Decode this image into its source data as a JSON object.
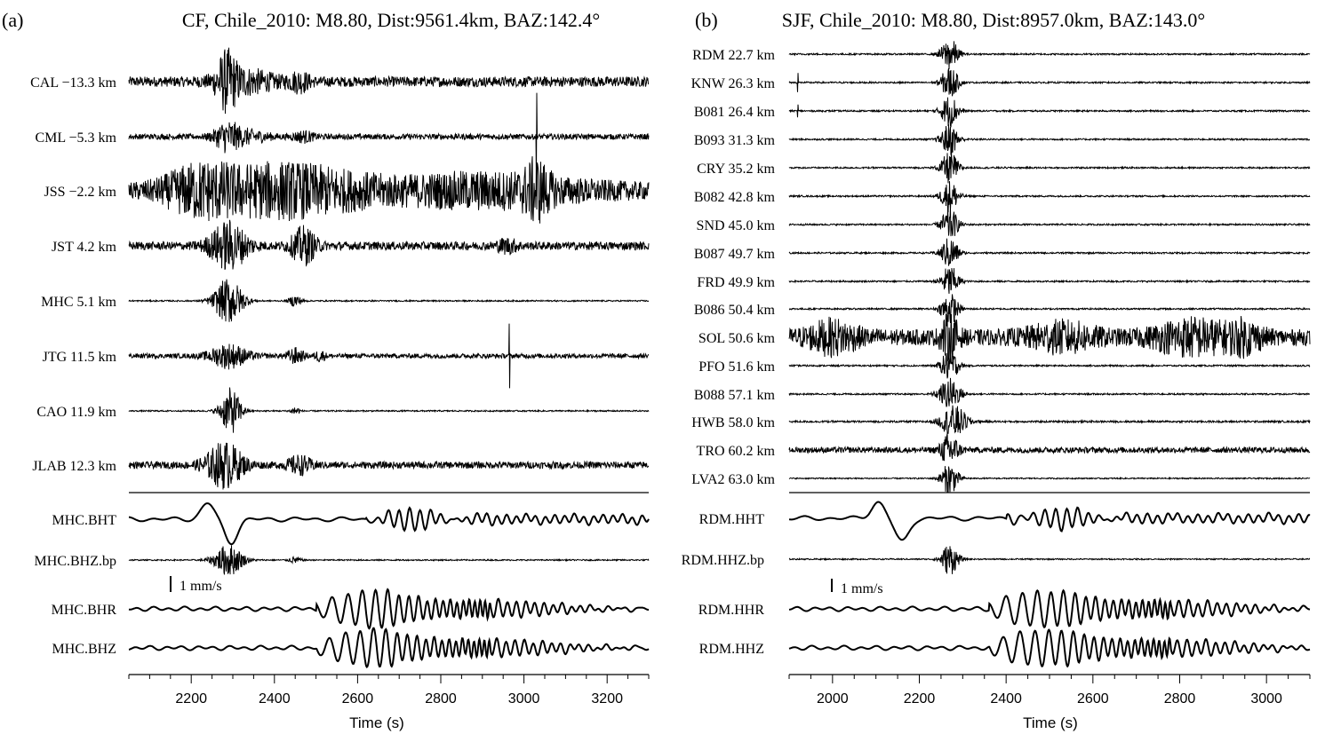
{
  "chart_data": [
    {
      "type": "line",
      "panel_label": "(a)",
      "title": "CF, Chile_2010: M8.80, Dist:9561.4km, BAZ:142.4°",
      "xlabel": "Time (s)",
      "ylabel": "",
      "xlim": [
        2050,
        3300
      ],
      "xticks": [
        2200,
        2400,
        2600,
        2800,
        3000,
        3200
      ],
      "xtick_labels": [
        "2200",
        "2400",
        "2600",
        "2800",
        "3000",
        "3200"
      ],
      "grid": false,
      "scale_bar": "1 mm/s",
      "series": [
        {
          "name": "CAL −13.3 km",
          "noise": 0.22,
          "bursts": [
            [
              2285,
              25,
              1.0
            ],
            [
              2330,
              70,
              0.45
            ],
            [
              2460,
              25,
              0.35
            ]
          ],
          "spikes": []
        },
        {
          "name": "CML −5.3 km",
          "noise": 0.12,
          "bursts": [
            [
              2285,
              30,
              0.55
            ],
            [
              2335,
              50,
              0.25
            ],
            [
              2470,
              25,
              0.2
            ]
          ],
          "spikes": [
            [
              3030,
              1.9
            ]
          ]
        },
        {
          "name": "JSS −2.2 km",
          "noise": 0.35,
          "bursts": [
            [
              2220,
              90,
              0.9
            ],
            [
              2380,
              120,
              0.7
            ],
            [
              2520,
              140,
              0.55
            ],
            [
              2900,
              250,
              0.55
            ],
            [
              3030,
              30,
              0.8
            ]
          ],
          "spikes": []
        },
        {
          "name": "JST 4.2 km",
          "noise": 0.18,
          "bursts": [
            [
              2290,
              45,
              1.0
            ],
            [
              2470,
              30,
              0.75
            ],
            [
              2960,
              25,
              0.25
            ]
          ],
          "spikes": []
        },
        {
          "name": "MHC 5.1 km",
          "noise": 0.03,
          "bursts": [
            [
              2290,
              35,
              1.0
            ],
            [
              2450,
              15,
              0.25
            ]
          ],
          "spikes": []
        },
        {
          "name": "JTG 11.5 km",
          "noise": 0.1,
          "bursts": [
            [
              2290,
              45,
              0.5
            ],
            [
              2450,
              20,
              0.3
            ],
            [
              2510,
              12,
              0.22
            ]
          ],
          "spikes": [
            [
              2965,
              1.4
            ]
          ]
        },
        {
          "name": "CAO 11.9 km",
          "noise": 0.03,
          "bursts": [
            [
              2295,
              25,
              1.0
            ],
            [
              2450,
              10,
              0.2
            ]
          ],
          "spikes": []
        },
        {
          "name": "JLAB 12.3 km",
          "noise": 0.15,
          "bursts": [
            [
              2280,
              45,
              0.95
            ],
            [
              2460,
              30,
              0.35
            ]
          ],
          "spikes": []
        }
      ],
      "waveforms": [
        {
          "name": "MHC.BHT",
          "type": "longperiod"
        },
        {
          "name": "MHC.BHZ.bp",
          "noise": 0.04,
          "bursts": [
            [
              2290,
              35,
              1.0
            ],
            [
              2450,
              15,
              0.2
            ]
          ],
          "spikes": []
        },
        {
          "name": "MHC.BHR",
          "type": "surface"
        },
        {
          "name": "MHC.BHZ",
          "type": "surface"
        }
      ]
    },
    {
      "type": "line",
      "panel_label": "(b)",
      "title": "SJF, Chile_2010: M8.80, Dist:8957.0km, BAZ:143.0°",
      "xlabel": "Time (s)",
      "ylabel": "",
      "xlim": [
        1900,
        3100
      ],
      "xticks": [
        2000,
        2200,
        2400,
        2600,
        2800,
        3000
      ],
      "xtick_labels": [
        "2000",
        "2200",
        "2400",
        "2600",
        "2800",
        "3000"
      ],
      "grid": false,
      "scale_bar": "1 mm/s",
      "series": [
        {
          "name": "RDM 22.7 km",
          "noise": 0.05,
          "bursts": [
            [
              2270,
              20,
              1.0
            ]
          ],
          "spikes": []
        },
        {
          "name": "KNW 26.3 km",
          "noise": 0.05,
          "bursts": [
            [
              2270,
              20,
              1.0
            ]
          ],
          "spikes": [
            [
              1920,
              0.6
            ]
          ]
        },
        {
          "name": "B081 26.4 km",
          "noise": 0.05,
          "bursts": [
            [
              2270,
              20,
              1.0
            ]
          ],
          "spikes": [
            [
              1920,
              0.4
            ]
          ]
        },
        {
          "name": "B093 31.3 km",
          "noise": 0.05,
          "bursts": [
            [
              2270,
              20,
              1.0
            ]
          ],
          "spikes": []
        },
        {
          "name": "CRY 35.2 km",
          "noise": 0.05,
          "bursts": [
            [
              2270,
              20,
              1.0
            ]
          ],
          "spikes": []
        },
        {
          "name": "B082 42.8 km",
          "noise": 0.05,
          "bursts": [
            [
              2270,
              20,
              1.0
            ]
          ],
          "spikes": []
        },
        {
          "name": "SND 45.0 km",
          "noise": 0.05,
          "bursts": [
            [
              2270,
              20,
              1.0
            ]
          ],
          "spikes": []
        },
        {
          "name": "B087 49.7 km",
          "noise": 0.05,
          "bursts": [
            [
              2270,
              20,
              1.0
            ]
          ],
          "spikes": []
        },
        {
          "name": "FRD 49.9 km",
          "noise": 0.05,
          "bursts": [
            [
              2270,
              20,
              1.0
            ]
          ],
          "spikes": []
        },
        {
          "name": "B086 50.4 km",
          "noise": 0.05,
          "bursts": [
            [
              2270,
              20,
              1.0
            ]
          ],
          "spikes": []
        },
        {
          "name": "SOL 50.6 km",
          "noise": 0.5,
          "bursts": [
            [
              2000,
              60,
              0.8
            ],
            [
              2270,
              20,
              1.2
            ],
            [
              2530,
              80,
              0.7
            ],
            [
              2830,
              90,
              0.9
            ],
            [
              2950,
              40,
              0.7
            ]
          ],
          "spikes": []
        },
        {
          "name": "PFO 51.6 km",
          "noise": 0.05,
          "bursts": [
            [
              2270,
              20,
              1.0
            ]
          ],
          "spikes": []
        },
        {
          "name": "B088 57.1 km",
          "noise": 0.05,
          "bursts": [
            [
              2270,
              25,
              1.0
            ]
          ],
          "spikes": []
        },
        {
          "name": "HWB 58.0 km",
          "noise": 0.06,
          "bursts": [
            [
              2280,
              30,
              1.0
            ]
          ],
          "spikes": []
        },
        {
          "name": "TRO 60.2 km",
          "noise": 0.18,
          "bursts": [
            [
              2270,
              20,
              1.0
            ]
          ],
          "spikes": []
        },
        {
          "name": "LVA2 63.0 km",
          "noise": 0.04,
          "bursts": [
            [
              2270,
              20,
              1.0
            ]
          ],
          "spikes": []
        }
      ],
      "waveforms": [
        {
          "name": "RDM.HHT",
          "type": "longperiod"
        },
        {
          "name": "RDM.HHZ.bp",
          "noise": 0.04,
          "bursts": [
            [
              2270,
              20,
              1.0
            ]
          ],
          "spikes": []
        },
        {
          "name": "RDM.HHR",
          "type": "surface"
        },
        {
          "name": "RDM.HHZ",
          "type": "surface"
        }
      ]
    }
  ]
}
